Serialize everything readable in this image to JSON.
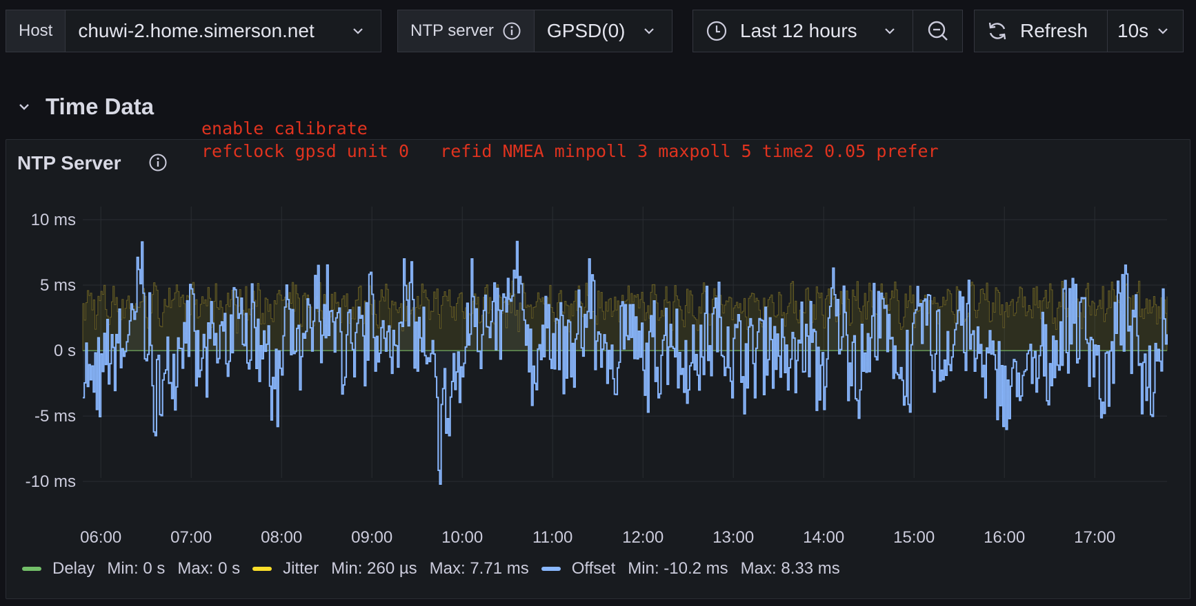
{
  "variables": {
    "host_label": "Host",
    "host_value": "chuwi-2.home.simerson.net",
    "ntp_label": "NTP server",
    "ntp_value": "GPSD(0)",
    "time_range": "Last 12 hours",
    "refresh_label": "Refresh",
    "refresh_interval": "10s"
  },
  "row": {
    "title": "Time Data"
  },
  "panel": {
    "title": "NTP Server",
    "annotation_lines": [
      "enable calibrate",
      "refclock gpsd unit 0   refid NMEA minpoll 3 maxpoll 5 time2 0.05 prefer"
    ]
  },
  "legend": [
    {
      "name": "Delay",
      "color": "#73bf69",
      "min": "Min: 0 s",
      "max": "Max: 0 s"
    },
    {
      "name": "Jitter",
      "color": "#fade2a",
      "min": "Min: 260 µs",
      "max": "Max: 7.71 ms"
    },
    {
      "name": "Offset",
      "color": "#8ab8ff",
      "min": "Min: -10.2 ms",
      "max": "Max: 8.33 ms"
    }
  ],
  "chart_data": {
    "type": "line",
    "y_ticks": [
      "10 ms",
      "5 ms",
      "0 s",
      "-5 ms",
      "-10 ms"
    ],
    "y_tick_values": [
      10,
      5,
      0,
      -5,
      -10
    ],
    "ylim": [
      -13.2,
      11
    ],
    "x_ticks": [
      "06:00",
      "07:00",
      "08:00",
      "09:00",
      "10:00",
      "11:00",
      "12:00",
      "13:00",
      "14:00",
      "15:00",
      "16:00",
      "17:00"
    ],
    "x_tick_hours": [
      6,
      7,
      8,
      9,
      10,
      11,
      12,
      13,
      14,
      15,
      16,
      17
    ],
    "xlim": [
      5.8,
      17.8
    ],
    "series": [
      {
        "name": "Delay",
        "color": "#73bf69",
        "values_ms": "constant 0"
      },
      {
        "name": "Jitter",
        "color": "#fade2a",
        "min_ms": 0.26,
        "max_ms": 7.71
      },
      {
        "name": "Offset",
        "color": "#8ab8ff",
        "min_ms": -10.2,
        "max_ms": 8.33
      }
    ],
    "offset_key_points": [
      [
        5.8,
        -3.6
      ],
      [
        5.95,
        -4.5
      ],
      [
        6.1,
        -1.0
      ],
      [
        6.3,
        1.2
      ],
      [
        6.45,
        8.3
      ],
      [
        6.6,
        -6.5
      ],
      [
        6.75,
        -2.5
      ],
      [
        6.95,
        3.8
      ],
      [
        7.1,
        -1.5
      ],
      [
        7.35,
        1.5
      ],
      [
        7.55,
        4.0
      ],
      [
        7.8,
        1.5
      ],
      [
        7.95,
        -5.8
      ],
      [
        8.05,
        5.0
      ],
      [
        8.2,
        -3.0
      ],
      [
        8.4,
        6.5
      ],
      [
        8.6,
        2.5
      ],
      [
        8.8,
        -2.0
      ],
      [
        9.0,
        4.3
      ],
      [
        9.2,
        -0.5
      ],
      [
        9.35,
        7.0
      ],
      [
        9.6,
        -1.0
      ],
      [
        9.75,
        -10.2
      ],
      [
        9.85,
        -6.5
      ],
      [
        10.0,
        -2.0
      ],
      [
        10.1,
        7.0
      ],
      [
        10.3,
        1.0
      ],
      [
        10.6,
        8.33
      ],
      [
        10.8,
        -2.5
      ],
      [
        10.95,
        3.5
      ],
      [
        11.2,
        -2.0
      ],
      [
        11.4,
        7.0
      ],
      [
        11.6,
        -2.5
      ],
      [
        11.8,
        3.5
      ],
      [
        12.0,
        -1.5
      ],
      [
        12.3,
        2.0
      ],
      [
        12.5,
        -3.0
      ],
      [
        12.8,
        4.0
      ],
      [
        13.1,
        -2.0
      ],
      [
        13.4,
        2.5
      ],
      [
        13.6,
        -3.0
      ],
      [
        13.8,
        2.0
      ],
      [
        14.0,
        -4.5
      ],
      [
        14.1,
        6.3
      ],
      [
        14.4,
        -3.0
      ],
      [
        14.6,
        4.5
      ],
      [
        14.9,
        -3.5
      ],
      [
        15.1,
        3.8
      ],
      [
        15.3,
        -1.5
      ],
      [
        15.5,
        4.5
      ],
      [
        15.75,
        -2.0
      ],
      [
        16.05,
        -5.2
      ],
      [
        16.3,
        -2.5
      ],
      [
        16.5,
        -1.0
      ],
      [
        16.75,
        5.5
      ],
      [
        16.95,
        1.0
      ],
      [
        17.1,
        -4.8
      ],
      [
        17.3,
        5.8
      ],
      [
        17.5,
        -1.0
      ],
      [
        17.62,
        -4.9
      ],
      [
        17.75,
        4.7
      ]
    ]
  }
}
